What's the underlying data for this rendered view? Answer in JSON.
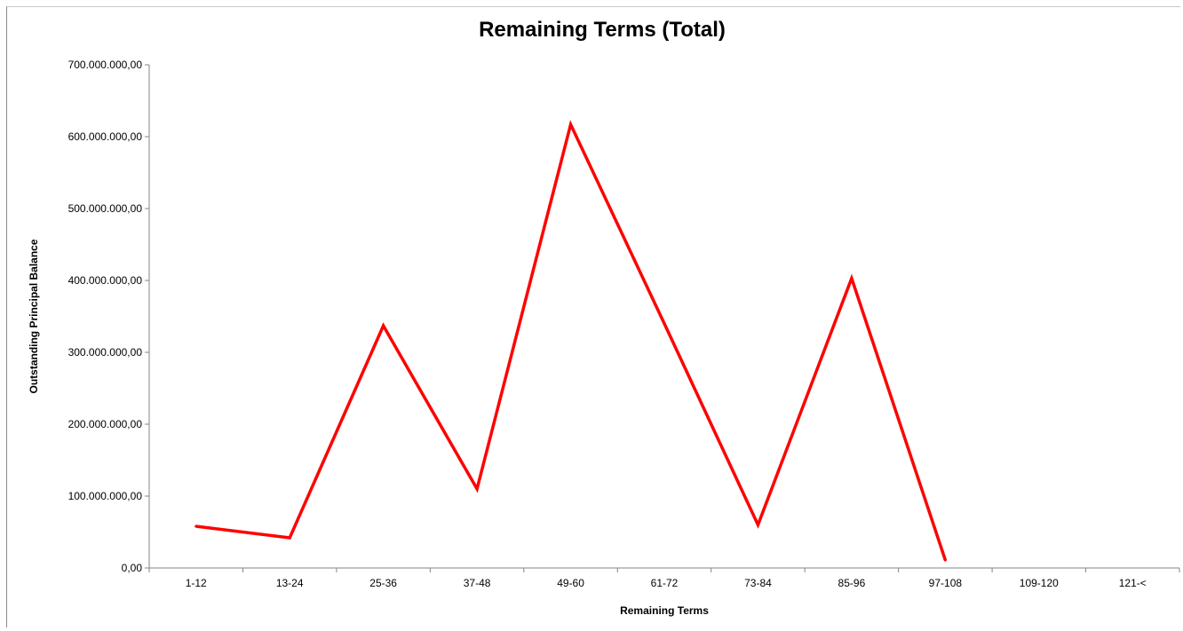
{
  "chart_data": {
    "type": "line",
    "title": "Remaining Terms (Total)",
    "xlabel": "Remaining Terms",
    "ylabel": "Outstanding Principal Balance",
    "categories": [
      "1-12",
      "13-24",
      "25-36",
      "37-48",
      "49-60",
      "61-72",
      "73-84",
      "85-96",
      "97-108",
      "109-120",
      "121-<"
    ],
    "series": [
      {
        "values": [
          58000000,
          42000000,
          337000000,
          110000000,
          617000000,
          340000000,
          60000000,
          403000000,
          11000000,
          null,
          null
        ],
        "color": "#ff0000"
      }
    ],
    "ylim": [
      0,
      700000000
    ],
    "yticks": [
      0,
      100000000,
      200000000,
      300000000,
      400000000,
      500000000,
      600000000,
      700000000
    ],
    "ytick_labels": [
      "0,00",
      "100.000.000,00",
      "200.000.000,00",
      "300.000.000,00",
      "400.000.000,00",
      "500.000.000,00",
      "600.000.000,00",
      "700.000.000,00"
    ],
    "grid": false,
    "legend": "none"
  }
}
